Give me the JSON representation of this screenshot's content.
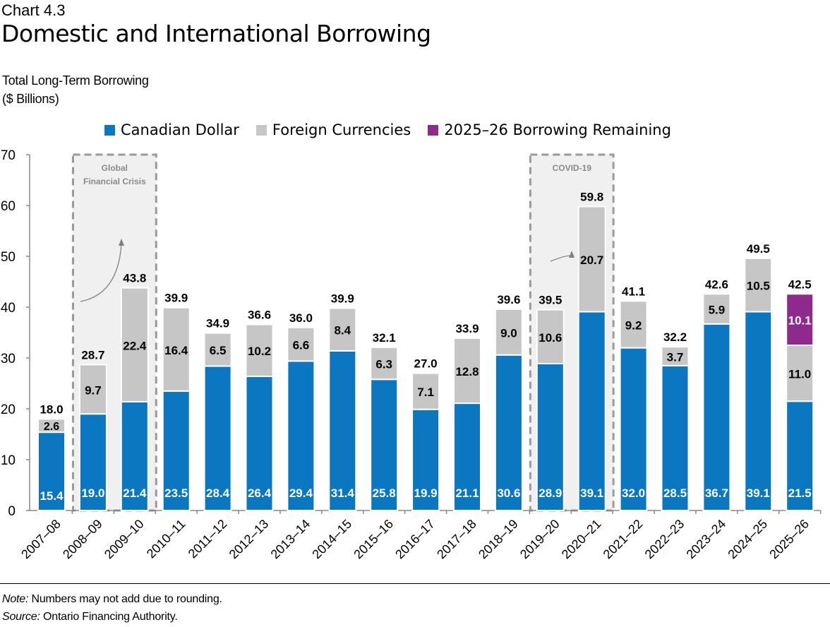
{
  "header": {
    "chart_number": "Chart 4.3",
    "title": "Domestic and International Borrowing"
  },
  "subtitle": {
    "line1": "Total Long-Term Borrowing",
    "line2": "($ Billions)"
  },
  "colors": {
    "canadian": "#0a77c0",
    "foreign": "#c6c6c6",
    "remaining": "#8e2a8e",
    "shade": "#f0f0f0",
    "dash": "#9a9a9a"
  },
  "annotations": [
    {
      "label_line1": "Global",
      "label_line2": "Financial Crisis",
      "from": "2008–09",
      "to": "2009–10"
    },
    {
      "label_line1": "COVID-19",
      "label_line2": "",
      "from": "2019–20",
      "to": "2020–21"
    }
  ],
  "chart_data": {
    "type": "bar",
    "stacked": true,
    "title": "Domestic and International Borrowing",
    "ylabel": "Total Long-Term Borrowing ($ Billions)",
    "ylim": [
      0,
      70
    ],
    "yticks": [
      0,
      10,
      20,
      30,
      40,
      50,
      60,
      70
    ],
    "grid": false,
    "legend_position": "top",
    "categories": [
      "2007–08",
      "2008–09",
      "2009–10",
      "2010–11",
      "2011–12",
      "2012–13",
      "2013–14",
      "2014–15",
      "2015–16",
      "2016–17",
      "2017–18",
      "2018–19",
      "2019–20",
      "2020–21",
      "2021–22",
      "2022–23",
      "2023–24",
      "2024–25",
      "2025–26"
    ],
    "series": [
      {
        "name": "Canadian Dollar",
        "values": [
          15.4,
          19.0,
          21.4,
          23.5,
          28.4,
          26.4,
          29.4,
          31.4,
          25.8,
          19.9,
          21.1,
          30.6,
          28.9,
          39.1,
          32.0,
          28.5,
          36.7,
          39.1,
          21.5
        ]
      },
      {
        "name": "Foreign Currencies",
        "values": [
          2.6,
          9.7,
          22.4,
          16.4,
          6.5,
          10.2,
          6.6,
          8.4,
          6.3,
          7.1,
          12.8,
          9.0,
          10.6,
          20.7,
          9.2,
          3.7,
          5.9,
          10.5,
          11.0
        ]
      },
      {
        "name": "2025–26 Borrowing Remaining",
        "values": [
          null,
          null,
          null,
          null,
          null,
          null,
          null,
          null,
          null,
          null,
          null,
          null,
          null,
          null,
          null,
          null,
          null,
          null,
          10.1
        ]
      }
    ],
    "totals": [
      18.0,
      28.7,
      43.8,
      39.9,
      34.9,
      36.6,
      36.0,
      39.9,
      32.1,
      27.0,
      33.9,
      39.6,
      39.5,
      59.8,
      41.1,
      32.2,
      42.6,
      49.5,
      42.5
    ]
  },
  "footer": {
    "note_label": "Note:",
    "note": " Numbers may not add due to rounding.",
    "source_label": "Source:",
    "source": " Ontario Financing Authority."
  }
}
